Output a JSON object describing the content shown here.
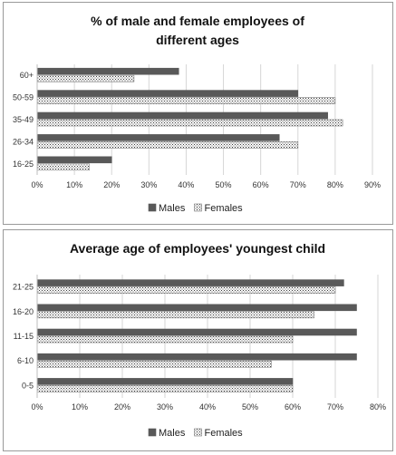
{
  "chart_data": [
    {
      "type": "bar",
      "orientation": "horizontal",
      "title_lines": [
        "% of male and female employees of",
        "different ages"
      ],
      "categories": [
        "16-25",
        "26-34",
        "35-49",
        "50-59",
        "60+"
      ],
      "series": [
        {
          "name": "Males",
          "values": [
            20,
            65,
            78,
            70,
            38
          ],
          "color": "#595959",
          "pattern": "solid"
        },
        {
          "name": "Females",
          "values": [
            14,
            70,
            82,
            80,
            26
          ],
          "color": "#ffffff",
          "pattern": "dotted"
        }
      ],
      "xlim": [
        0,
        90
      ],
      "xticks": [
        "0%",
        "10%",
        "20%",
        "30%",
        "40%",
        "50%",
        "60%",
        "70%",
        "80%",
        "90%"
      ],
      "legend": "bottom",
      "grid": true
    },
    {
      "type": "bar",
      "orientation": "horizontal",
      "title_lines": [
        "Average age of employees' youngest child"
      ],
      "categories": [
        "0-5",
        "6-10",
        "11-15",
        "16-20",
        "21-25"
      ],
      "series": [
        {
          "name": "Males",
          "values": [
            60,
            75,
            75,
            75,
            72
          ],
          "color": "#595959",
          "pattern": "solid"
        },
        {
          "name": "Females",
          "values": [
            60,
            55,
            60,
            65,
            70
          ],
          "color": "#ffffff",
          "pattern": "dotted"
        }
      ],
      "xlim": [
        0,
        80
      ],
      "xticks": [
        "0%",
        "10%",
        "20%",
        "30%",
        "40%",
        "50%",
        "60%",
        "70%",
        "80%"
      ],
      "legend": "bottom",
      "grid": true
    }
  ]
}
